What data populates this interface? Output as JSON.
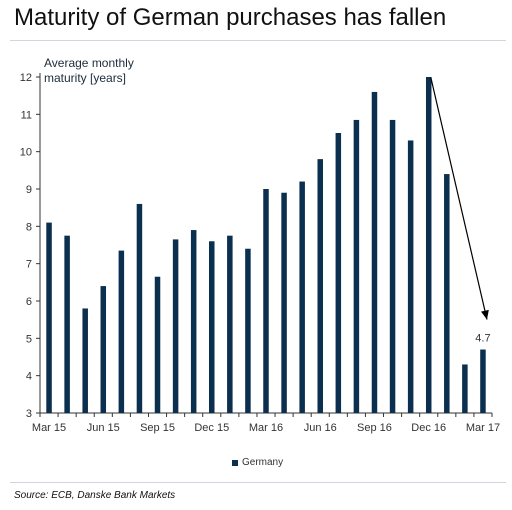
{
  "header": {
    "title": "Maturity of German purchases has fallen"
  },
  "footer": {
    "source": "Source: ECB, Danske Bank Markets"
  },
  "colors": {
    "bar": "#0b2f4e",
    "arrow": "#000000",
    "axis": "#333333"
  },
  "chart_data": {
    "type": "bar",
    "ylabel_lines": [
      "Average monthly",
      "maturity [years]"
    ],
    "ylim": [
      3,
      12
    ],
    "yticks": [
      3,
      4,
      5,
      6,
      7,
      8,
      9,
      10,
      11,
      12
    ],
    "grid": false,
    "legend_position": "bottom-center",
    "categories": [
      "Mar 15",
      "Apr 15",
      "May 15",
      "Jun 15",
      "Jul 15",
      "Aug 15",
      "Sep 15",
      "Oct 15",
      "Nov 15",
      "Dec 15",
      "Jan 16",
      "Feb 16",
      "Mar 16",
      "Apr 16",
      "May 16",
      "Jun 16",
      "Jul 16",
      "Aug 16",
      "Sep 16",
      "Oct 16",
      "Nov 16",
      "Dec 16",
      "Jan 17",
      "Feb 17",
      "Mar 17"
    ],
    "xtick_labels": [
      "Mar 15",
      "Jun 15",
      "Sep 15",
      "Dec 15",
      "Mar 16",
      "Jun 16",
      "Sep 16",
      "Dec 16",
      "Mar 17"
    ],
    "series": [
      {
        "name": "Germany",
        "values": [
          8.1,
          7.75,
          5.8,
          6.4,
          7.35,
          8.6,
          6.65,
          7.65,
          7.9,
          7.6,
          7.75,
          7.4,
          9.0,
          8.9,
          9.2,
          9.8,
          10.5,
          10.85,
          11.6,
          10.85,
          10.3,
          12.0,
          9.4,
          4.3,
          4.7
        ]
      }
    ],
    "annotations": [
      {
        "text": "4.7",
        "category": "Mar 17",
        "value": 4.7
      }
    ]
  }
}
